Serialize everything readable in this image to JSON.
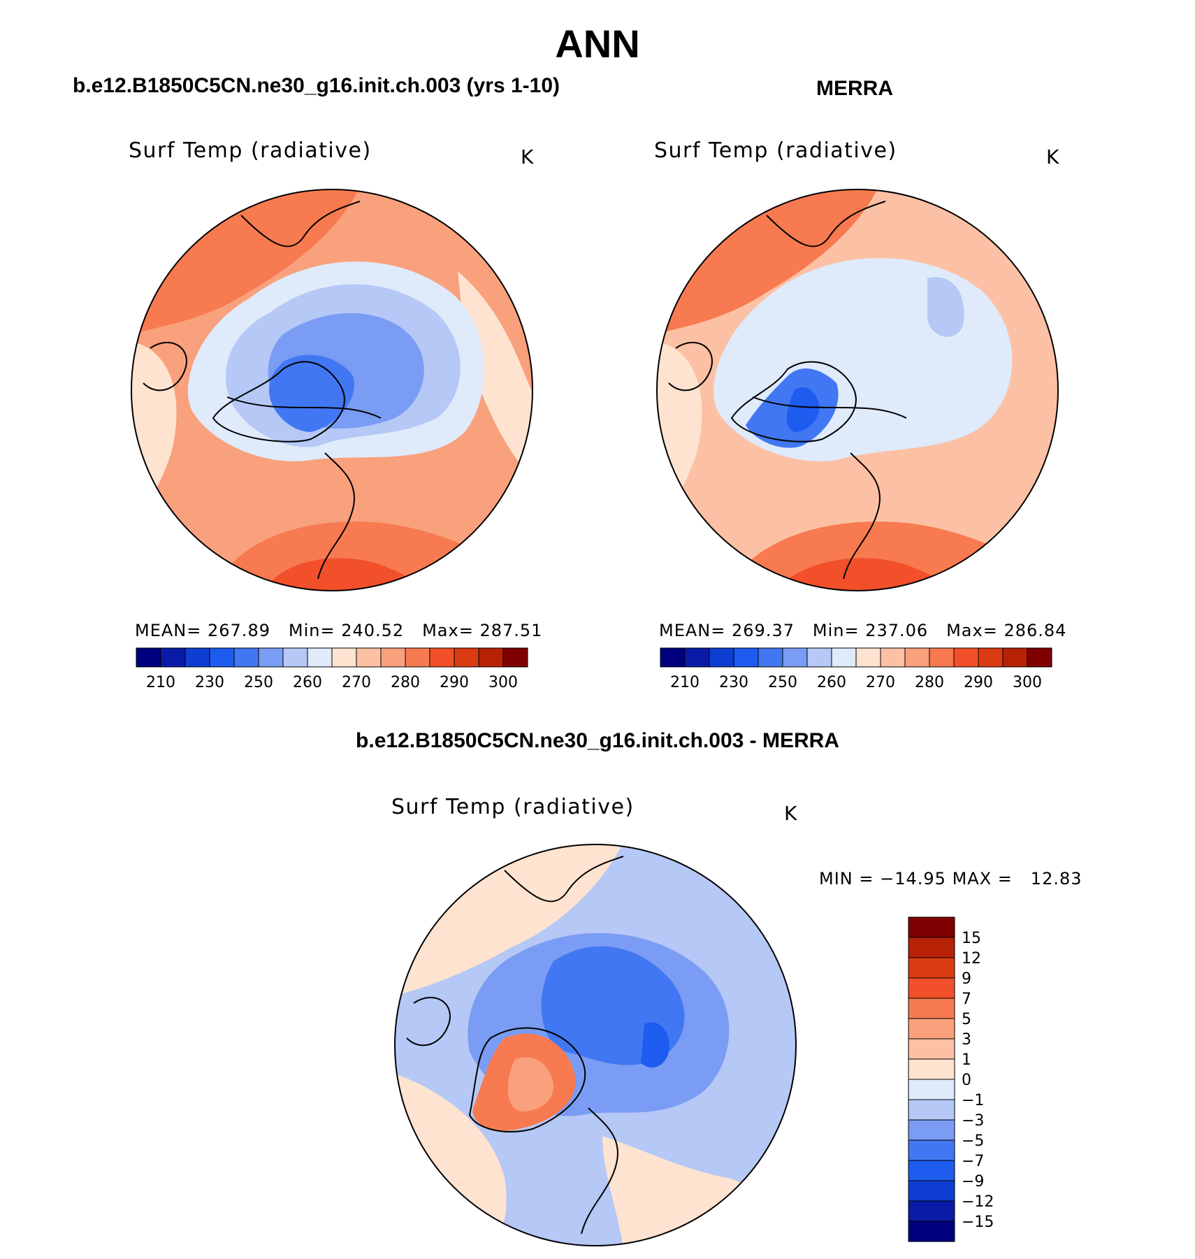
{
  "figure": {
    "main_title": "ANN"
  },
  "panels": {
    "model": {
      "title": "b.e12.B1850C5CN.ne30_g16.init.ch.003 (yrs 1-10)",
      "variable_label": "Surf Temp (radiative)",
      "units": "K",
      "stats": {
        "mean_label": "MEAN=",
        "mean_value": "267.89",
        "min_label": "Min=",
        "min_value": "240.52",
        "max_label": "Max=",
        "max_value": "287.51"
      }
    },
    "obs": {
      "title": "MERRA",
      "variable_label": "Surf Temp (radiative)",
      "units": "K",
      "stats": {
        "mean_label": "MEAN=",
        "mean_value": "269.37",
        "min_label": "Min=",
        "min_value": "237.06",
        "max_label": "Max=",
        "max_value": "286.84"
      }
    },
    "difference": {
      "title": "b.e12.B1850C5CN.ne30_g16.init.ch.003 - MERRA",
      "variable_label": "Surf Temp (radiative)",
      "units": "K",
      "stats": {
        "min_label": "MIN =",
        "min_value": "−14.95",
        "max_label": "MAX =",
        "max_value": "12.83"
      }
    }
  },
  "colorbars": {
    "absolute": {
      "colors": [
        "#00007f",
        "#0a1ba8",
        "#0f3ed2",
        "#1e5cf0",
        "#4177f2",
        "#7b9cf4",
        "#b5c8f6",
        "#dfeafb",
        "#fde3d0",
        "#fcc1a4",
        "#f9a07d",
        "#f77a50",
        "#f2502a",
        "#db3b12",
        "#b72206",
        "#7e0000"
      ],
      "tick_labels": [
        "210",
        "230",
        "250",
        "260",
        "270",
        "280",
        "290",
        "300"
      ]
    },
    "difference": {
      "colors": [
        "#00007f",
        "#0a1ba8",
        "#0f3ed2",
        "#1e5cf0",
        "#4177f2",
        "#7b9cf4",
        "#b5c8f6",
        "#dfeafb",
        "#fde3d0",
        "#fcc1a4",
        "#f9a07d",
        "#f77a50",
        "#f2502a",
        "#db3b12",
        "#b72206",
        "#7e0000"
      ],
      "tick_labels": [
        "15",
        "12",
        "9",
        "7",
        "5",
        "3",
        "1",
        "0",
        "−1",
        "−3",
        "−5",
        "−7",
        "−9",
        "−12",
        "−15"
      ]
    }
  }
}
